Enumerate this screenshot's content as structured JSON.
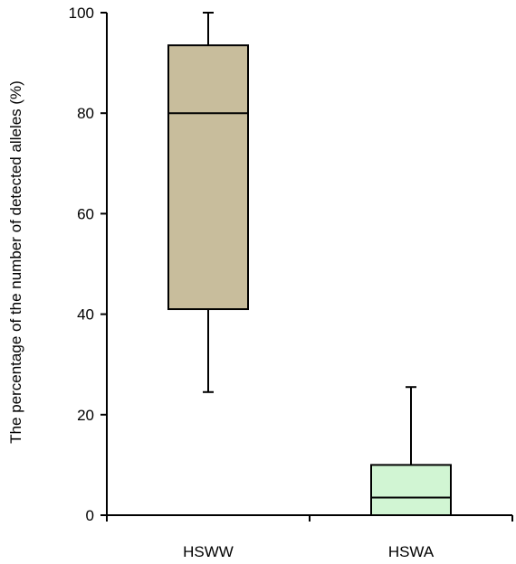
{
  "chart_data": {
    "type": "boxplot",
    "ylabel": "The percentage of the number of detected alleles (%)",
    "ylim": [
      0,
      100
    ],
    "yticks": [
      0,
      20,
      40,
      60,
      80,
      100
    ],
    "grid": false,
    "legend": "none",
    "categories": [
      "HSWW",
      "HSWA"
    ],
    "boxes": [
      {
        "category": "HSWW",
        "min": 24.5,
        "q1": 41,
        "median": 80,
        "q3": 93.5,
        "max": 100,
        "color": "#c8bd9c"
      },
      {
        "category": "HSWA",
        "min": 0,
        "q1": 0,
        "median": 3.5,
        "q3": 10,
        "max": 25.5,
        "color": "#d1f5d3"
      }
    ]
  }
}
